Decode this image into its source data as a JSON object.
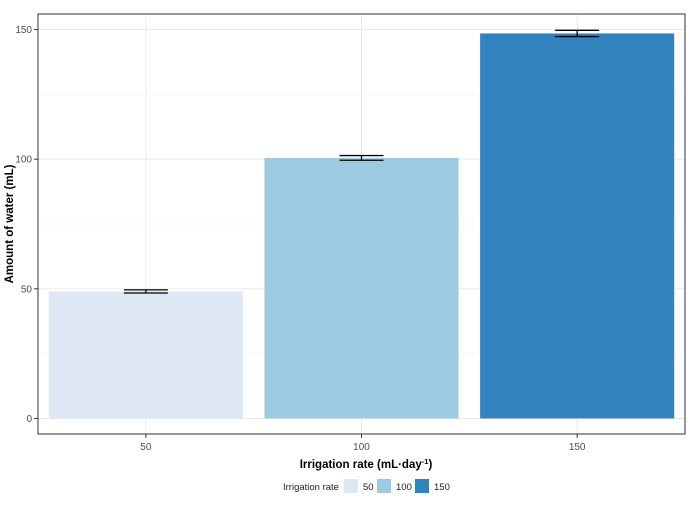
{
  "chart_data": {
    "type": "bar",
    "title": "",
    "xlabel": "Irrigation rate (mL·day",
    "xlabel_superscript": "-1",
    "xlabel_close": ")",
    "ylabel": "Amount of water (mL)",
    "categories": [
      "50",
      "100",
      "150"
    ],
    "values": [
      49,
      100.5,
      148.5
    ],
    "error_bars": [
      0.6,
      0.9,
      1.2
    ],
    "colors": [
      "#dde8f4",
      "#9ecae1",
      "#3282bd"
    ],
    "ylim": [
      -6,
      156
    ],
    "yticks": [
      0,
      50,
      100,
      150
    ],
    "ytick_labels": [
      "0",
      "50",
      "100",
      "150"
    ],
    "grid": true,
    "legend": {
      "title": "Irrigation rate",
      "position": "bottom",
      "entries": [
        "50",
        "100",
        "150"
      ]
    }
  }
}
